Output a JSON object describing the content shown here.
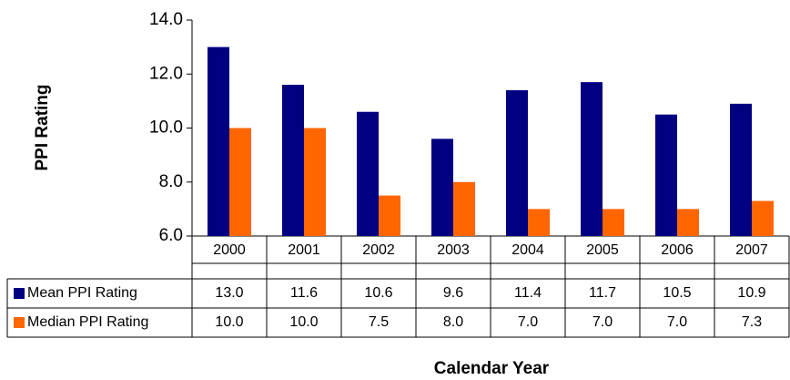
{
  "chart_data": {
    "type": "bar",
    "x_label": "Calendar Year",
    "y_label": "PPI Rating",
    "categories": [
      "2000",
      "2001",
      "2002",
      "2003",
      "2004",
      "2005",
      "2006",
      "2007"
    ],
    "series": [
      {
        "name": "Mean PPI Rating",
        "color": "#000080",
        "values": [
          13.0,
          11.6,
          10.6,
          9.6,
          11.4,
          11.7,
          10.5,
          10.9
        ],
        "value_labels": [
          "13.0",
          "11.6",
          "10.6",
          "9.6",
          "11.4",
          "11.7",
          "10.5",
          "10.9"
        ]
      },
      {
        "name": "Median PPI Rating",
        "color": "#FF6600",
        "values": [
          10.0,
          10.0,
          7.5,
          8.0,
          7.0,
          7.0,
          7.0,
          7.3
        ],
        "value_labels": [
          "10.0",
          "10.0",
          "7.5",
          "8.0",
          "7.0",
          "7.0",
          "7.0",
          "7.3"
        ]
      }
    ],
    "ylim": [
      6,
      14
    ],
    "yticks": [
      {
        "value": 6,
        "label": "6.0"
      },
      {
        "value": 8,
        "label": "8.0"
      },
      {
        "value": 10,
        "label": "10.0"
      },
      {
        "value": 12,
        "label": "12.0"
      },
      {
        "value": 14,
        "label": "14.0"
      }
    ],
    "grid": false,
    "data_table": true
  }
}
